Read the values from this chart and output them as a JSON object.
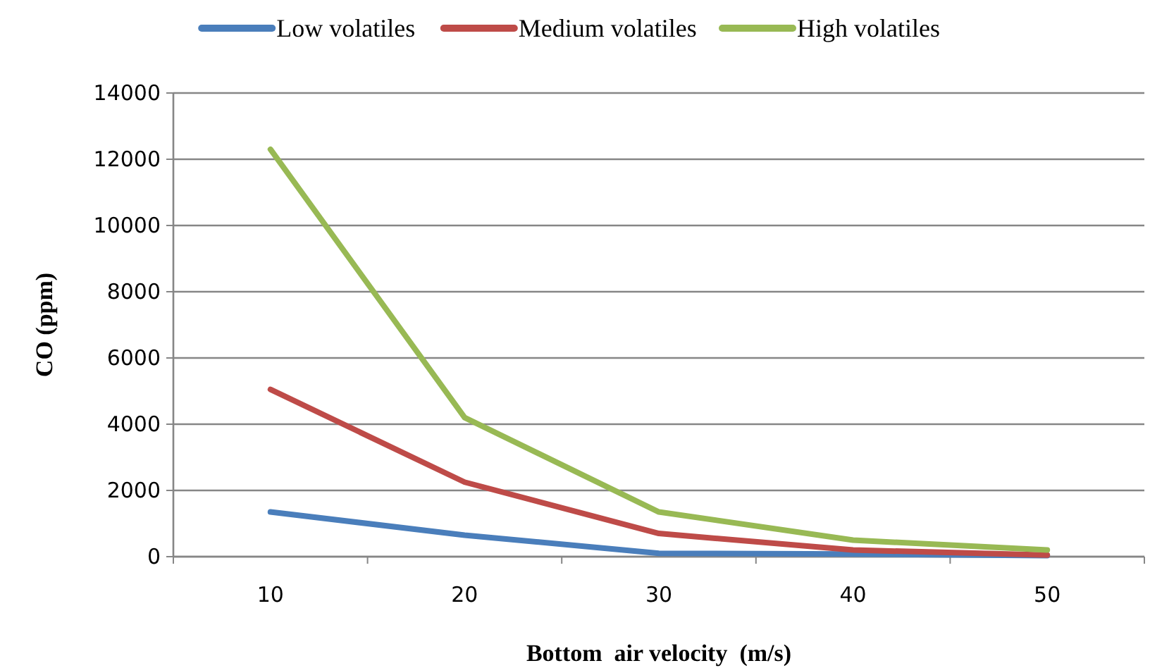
{
  "chart_data": {
    "type": "line",
    "xlabel": "Bottom  air velocity  (m/s)",
    "ylabel": "CO (ppm)",
    "categories": [
      "10",
      "20",
      "30",
      "40",
      "50"
    ],
    "series": [
      {
        "name": "Low volatiles",
        "color": "#4a7ebb",
        "values": [
          1350,
          650,
          100,
          80,
          30
        ]
      },
      {
        "name": "Medium volatiles",
        "color": "#be4b48",
        "values": [
          5050,
          2250,
          700,
          200,
          50
        ]
      },
      {
        "name": "High volatiles",
        "color": "#98b954",
        "values": [
          12300,
          4200,
          1350,
          500,
          200
        ]
      }
    ],
    "ylim": [
      0,
      14000
    ],
    "yticks": [
      0,
      2000,
      4000,
      6000,
      8000,
      10000,
      12000,
      14000
    ],
    "grid": "y",
    "legend": "top",
    "marker": "none",
    "line_style": "solid"
  }
}
